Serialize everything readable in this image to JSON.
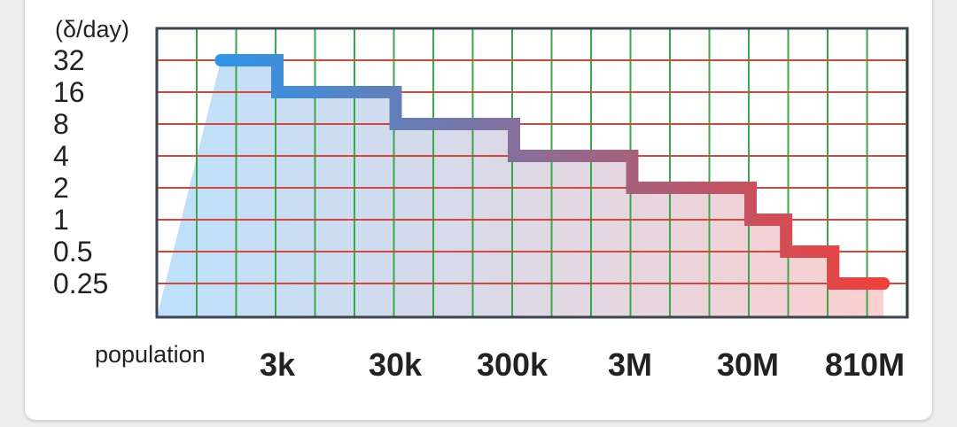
{
  "chart_data": {
    "type": "line",
    "step": true,
    "y_unit_label": "(δ/day)",
    "y_scale": "log2",
    "y_ticks": [
      "32",
      "16",
      "8",
      "4",
      "2",
      "1",
      "0.5",
      "0.25"
    ],
    "x_title": "population",
    "x_scale": "log",
    "x_ticks": [
      "3k",
      "30k",
      "300k",
      "3M",
      "30M",
      "810M"
    ],
    "grid": true,
    "series": [
      {
        "points": [
          {
            "x": 1000,
            "y": 32
          },
          {
            "x": 3000,
            "y": 32
          },
          {
            "x": 3000,
            "y": 16
          },
          {
            "x": 30000,
            "y": 16
          },
          {
            "x": 30000,
            "y": 8
          },
          {
            "x": 300000,
            "y": 8
          },
          {
            "x": 300000,
            "y": 4
          },
          {
            "x": 3000000,
            "y": 4
          },
          {
            "x": 3000000,
            "y": 2
          },
          {
            "x": 30000000,
            "y": 2
          },
          {
            "x": 30000000,
            "y": 1
          },
          {
            "x": 60000000,
            "y": 1
          },
          {
            "x": 60000000,
            "y": 0.5
          },
          {
            "x": 150000000,
            "y": 0.5
          },
          {
            "x": 150000000,
            "y": 0.25
          },
          {
            "x": 400000000,
            "y": 0.25
          }
        ]
      }
    ],
    "colors": {
      "line_start": "#2f95e8",
      "line_end": "#f0403a",
      "fill_start": "#bde0fb",
      "fill_end": "#fcd0d0",
      "vgrid": "#3aa84a",
      "hgrid": "#d0493f",
      "frame": "#3c4650"
    }
  }
}
